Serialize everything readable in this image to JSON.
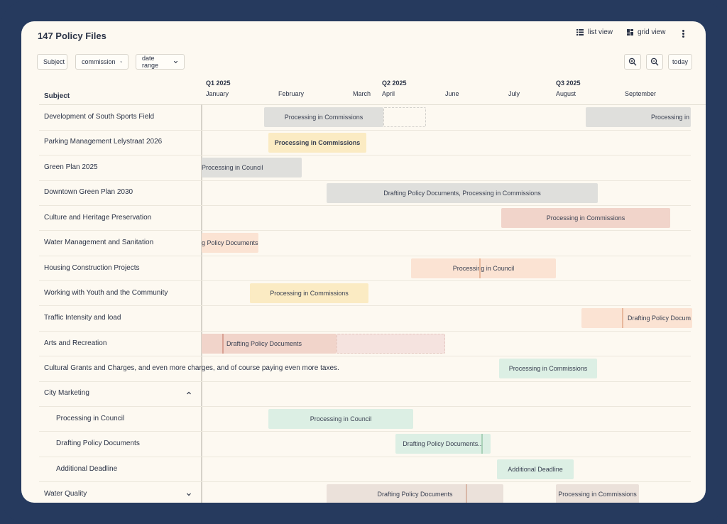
{
  "header": {
    "title": "147 Policy Files",
    "list_view_label": "list view",
    "grid_view_label": "grid view"
  },
  "filters": {
    "subject": "Subject",
    "commission": "commission",
    "date_range": "date range"
  },
  "toolbar": {
    "zoom_in_icon": "zoom-in-icon",
    "zoom_out_icon": "zoom-out-icon",
    "today_label": "today"
  },
  "timeline": {
    "subject_header": "Subject",
    "quarters": [
      "Q1 2025",
      "Q2 2025",
      "Q3 2025"
    ],
    "months": [
      "January",
      "February",
      "March",
      "April",
      "June",
      "July",
      "August",
      "September"
    ]
  },
  "rows": [
    {
      "label": "Development of South Sports Field",
      "bars": [
        "Processing in Commissions",
        "Processing in"
      ]
    },
    {
      "label": "Parking Management Lelystraat 2026",
      "bars": [
        "Processing in Commissions"
      ]
    },
    {
      "label": "Green Plan 2025",
      "bars": [
        "Processing in Council"
      ]
    },
    {
      "label": "Downtown Green Plan 2030",
      "bars": [
        "Drafting Policy Documents, Processing in Commissions"
      ]
    },
    {
      "label": "Culture and Heritage Preservation",
      "bars": [
        "Processing in Commissions"
      ]
    },
    {
      "label": "Water Management and Sanitation",
      "bars": [
        "g Policy Documents"
      ]
    },
    {
      "label": "Housing Construction Projects",
      "bars": [
        "Processing in Council"
      ]
    },
    {
      "label": "Working with Youth and the Community",
      "bars": [
        "Processing in Commissions"
      ]
    },
    {
      "label": "Traffic Intensity and load",
      "bars": [
        "Drafting Policy Docum"
      ]
    },
    {
      "label": "Arts and Recreation",
      "bars": [
        "Drafting Policy Documents"
      ]
    },
    {
      "label": "Cultural Grants and Charges, and even more charges, and of course paying even more taxes.",
      "bars": [
        "Processing in Commissions"
      ]
    },
    {
      "label": "City Marketing",
      "bars": []
    },
    {
      "label": "Processing in Council",
      "bars": [
        "Processing in Council"
      ]
    },
    {
      "label": "Drafting Policy Documents",
      "bars": [
        "Drafting Policy Documents..."
      ]
    },
    {
      "label": "Additional Deadline",
      "bars": [
        "Additional Deadline"
      ]
    },
    {
      "label": "Water Quality",
      "bars": [
        "Drafting Policy Documents",
        "Processing in Commissions"
      ]
    }
  ],
  "colors": {
    "background": "#263a5e",
    "panel": "#fdf9f1",
    "gray_bar": "#dfdfdc",
    "yellow_bar": "#fbebc3",
    "rose_bar": "#f1d4ca",
    "peach_bar": "#fbe3d3",
    "green_bar": "#dcefe4",
    "taupe_bar": "#ebe1da"
  }
}
